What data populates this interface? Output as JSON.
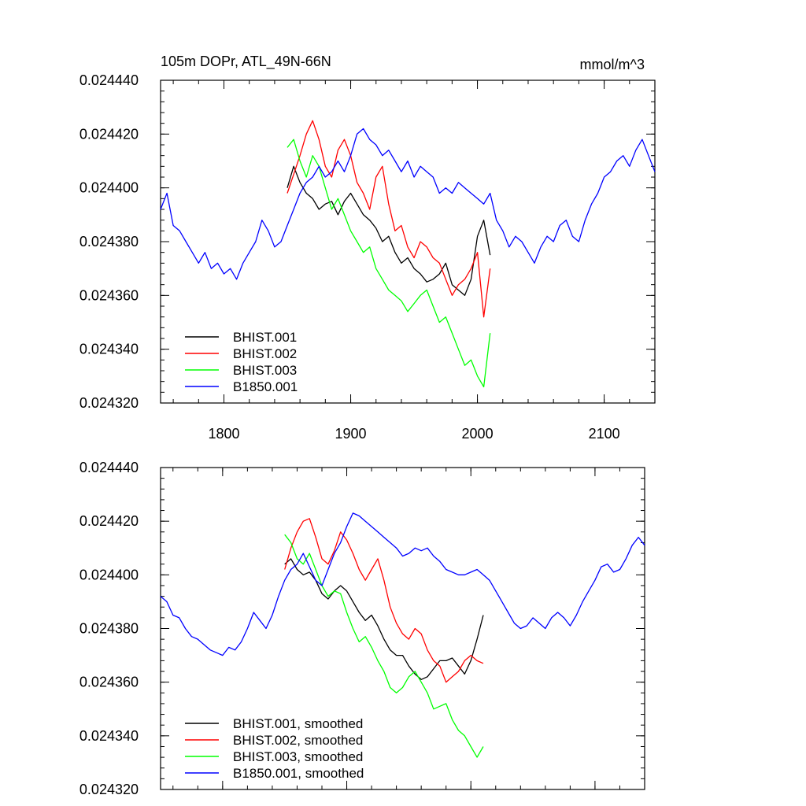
{
  "chart_data": [
    {
      "id": "raw",
      "type": "line",
      "title_left": "105m DOPr, ATL_49N-66N",
      "title_right": "mmol/m^3",
      "xlabel": "",
      "ylabel": "",
      "xlim": [
        1750,
        2140
      ],
      "ylim": [
        0.02432,
        0.02444
      ],
      "xticks": [
        1800,
        1900,
        2000,
        2100
      ],
      "xtick_labels": [
        "1800",
        "1900",
        "2000",
        "2100"
      ],
      "xminor_step": 20,
      "yticks": [
        0.02432,
        0.02434,
        0.02436,
        0.02438,
        0.0244,
        0.02442,
        0.02444
      ],
      "ytick_labels": [
        "0.024320",
        "0.024340",
        "0.024360",
        "0.024380",
        "0.024400",
        "0.024420",
        "0.024440"
      ],
      "yminor_step": 4e-06,
      "legend_position": "bottom-left",
      "series": [
        {
          "name": "BHIST.001",
          "color": "#000000",
          "x_start": 1850,
          "x_step": 5,
          "values": [
            0.0244,
            0.024408,
            0.024402,
            0.024398,
            0.024396,
            0.024392,
            0.024394,
            0.024395,
            0.02439,
            0.024395,
            0.024398,
            0.024394,
            0.02439,
            0.024388,
            0.024385,
            0.02438,
            0.024382,
            0.024376,
            0.024372,
            0.024374,
            0.02437,
            0.024368,
            0.024365,
            0.024366,
            0.024368,
            0.024372,
            0.024364,
            0.024362,
            0.02436,
            0.024366,
            0.024382,
            0.024388,
            0.024375
          ]
        },
        {
          "name": "BHIST.002",
          "color": "#ff0000",
          "x_start": 1850,
          "x_step": 5,
          "values": [
            0.024398,
            0.024405,
            0.024412,
            0.02442,
            0.024425,
            0.024418,
            0.024408,
            0.024404,
            0.024414,
            0.024418,
            0.024412,
            0.024402,
            0.024398,
            0.024392,
            0.024404,
            0.024408,
            0.024394,
            0.024384,
            0.024386,
            0.024378,
            0.024374,
            0.02438,
            0.024378,
            0.024374,
            0.024372,
            0.024366,
            0.02436,
            0.024364,
            0.024366,
            0.02437,
            0.024376,
            0.024352,
            0.02437
          ]
        },
        {
          "name": "BHIST.003",
          "color": "#00ff00",
          "x_start": 1850,
          "x_step": 5,
          "values": [
            0.024415,
            0.024418,
            0.02441,
            0.024404,
            0.024412,
            0.024408,
            0.0244,
            0.024392,
            0.024396,
            0.02439,
            0.024384,
            0.02438,
            0.024376,
            0.024378,
            0.02437,
            0.024366,
            0.024362,
            0.02436,
            0.024358,
            0.024354,
            0.024357,
            0.02436,
            0.024362,
            0.024356,
            0.02435,
            0.024352,
            0.024346,
            0.02434,
            0.024334,
            0.024336,
            0.02433,
            0.024326,
            0.024346
          ]
        },
        {
          "name": "B1850.001",
          "color": "#0000ff",
          "x_start": 1750,
          "x_step": 5,
          "values": [
            0.024392,
            0.024398,
            0.024386,
            0.024384,
            0.02438,
            0.024376,
            0.024372,
            0.024376,
            0.02437,
            0.024372,
            0.024368,
            0.02437,
            0.024366,
            0.024372,
            0.024376,
            0.02438,
            0.024388,
            0.024384,
            0.024378,
            0.02438,
            0.024386,
            0.024392,
            0.024398,
            0.024402,
            0.024404,
            0.024408,
            0.024404,
            0.024406,
            0.02441,
            0.024406,
            0.024412,
            0.02442,
            0.024422,
            0.024418,
            0.024416,
            0.024412,
            0.024414,
            0.02441,
            0.024406,
            0.02441,
            0.024404,
            0.024408,
            0.024406,
            0.024404,
            0.024398,
            0.0244,
            0.024398,
            0.024402,
            0.0244,
            0.024398,
            0.024396,
            0.024394,
            0.024398,
            0.024388,
            0.024384,
            0.024378,
            0.024382,
            0.02438,
            0.024376,
            0.024372,
            0.024378,
            0.024382,
            0.02438,
            0.024386,
            0.024388,
            0.024382,
            0.02438,
            0.024388,
            0.024394,
            0.024398,
            0.024404,
            0.024406,
            0.02441,
            0.024412,
            0.024408,
            0.024414,
            0.024418,
            0.024412,
            0.024406
          ]
        }
      ],
      "legend": [
        "BHIST.001",
        "BHIST.002",
        "BHIST.003",
        "B1850.001"
      ]
    },
    {
      "id": "smoothed",
      "type": "line",
      "title_left": "",
      "title_right": "",
      "xlabel": "",
      "ylabel": "",
      "xlim": [
        1750,
        2140
      ],
      "ylim": [
        0.02432,
        0.02444
      ],
      "xticks": [
        1800,
        1900,
        2000,
        2100
      ],
      "xtick_labels": [],
      "xminor_step": 20,
      "yticks": [
        0.02432,
        0.02434,
        0.02436,
        0.02438,
        0.0244,
        0.02442,
        0.02444
      ],
      "ytick_labels": [
        "0.024320",
        "0.024340",
        "0.024360",
        "0.024380",
        "0.024400",
        "0.024420",
        "0.024440"
      ],
      "yminor_step": 4e-06,
      "legend_position": "bottom-left",
      "series": [
        {
          "name": "BHIST.001, smoothed",
          "color": "#000000",
          "x_start": 1850,
          "x_step": 5,
          "values": [
            0.024404,
            0.024406,
            0.024402,
            0.0244,
            0.024401,
            0.024398,
            0.024393,
            0.024391,
            0.024394,
            0.024396,
            0.024394,
            0.02439,
            0.024386,
            0.024383,
            0.024385,
            0.024381,
            0.024376,
            0.024372,
            0.02437,
            0.02437,
            0.024366,
            0.024363,
            0.024361,
            0.024362,
            0.024365,
            0.024368,
            0.024368,
            0.024369,
            0.024366,
            0.024363,
            0.024368,
            0.024376,
            0.024385
          ]
        },
        {
          "name": "BHIST.002, smoothed",
          "color": "#ff0000",
          "x_start": 1850,
          "x_step": 5,
          "values": [
            0.024402,
            0.02441,
            0.024416,
            0.02442,
            0.024421,
            0.024414,
            0.024406,
            0.024404,
            0.024409,
            0.024416,
            0.024413,
            0.024408,
            0.024402,
            0.024398,
            0.024402,
            0.024406,
            0.024398,
            0.024388,
            0.024382,
            0.024378,
            0.024376,
            0.02438,
            0.024378,
            0.024372,
            0.024368,
            0.024366,
            0.02436,
            0.024362,
            0.024364,
            0.024368,
            0.02437,
            0.024368,
            0.024367
          ]
        },
        {
          "name": "BHIST.003, smoothed",
          "color": "#00ff00",
          "x_start": 1850,
          "x_step": 5,
          "values": [
            0.024415,
            0.024412,
            0.024406,
            0.024404,
            0.024408,
            0.024402,
            0.024396,
            0.024392,
            0.024394,
            0.024393,
            0.024386,
            0.02438,
            0.024375,
            0.024377,
            0.024373,
            0.024368,
            0.024364,
            0.024358,
            0.024356,
            0.024358,
            0.024362,
            0.024364,
            0.02436,
            0.024356,
            0.02435,
            0.024351,
            0.024352,
            0.024346,
            0.024342,
            0.02434,
            0.024336,
            0.024332,
            0.024336
          ]
        },
        {
          "name": "B1850.001, smoothed",
          "color": "#0000ff",
          "x_start": 1750,
          "x_step": 5,
          "values": [
            0.024392,
            0.02439,
            0.024385,
            0.024384,
            0.02438,
            0.024377,
            0.024376,
            0.024374,
            0.024372,
            0.024371,
            0.02437,
            0.024373,
            0.024372,
            0.024375,
            0.02438,
            0.024386,
            0.024383,
            0.02438,
            0.024385,
            0.024392,
            0.024398,
            0.024402,
            0.024404,
            0.024408,
            0.024403,
            0.024398,
            0.024396,
            0.024402,
            0.024408,
            0.024412,
            0.024418,
            0.024423,
            0.024422,
            0.02442,
            0.024418,
            0.024416,
            0.024414,
            0.024412,
            0.02441,
            0.024407,
            0.024408,
            0.02441,
            0.024409,
            0.02441,
            0.024407,
            0.024405,
            0.024402,
            0.024401,
            0.0244,
            0.0244,
            0.024401,
            0.024402,
            0.0244,
            0.024398,
            0.024394,
            0.02439,
            0.024386,
            0.024382,
            0.02438,
            0.024381,
            0.024384,
            0.024382,
            0.02438,
            0.024384,
            0.024386,
            0.024384,
            0.024381,
            0.024385,
            0.02439,
            0.024394,
            0.024398,
            0.024403,
            0.024404,
            0.024401,
            0.024402,
            0.024406,
            0.024411,
            0.024414,
            0.024411
          ]
        }
      ],
      "legend": [
        "BHIST.001, smoothed",
        "BHIST.002, smoothed",
        "BHIST.003, smoothed",
        "B1850.001, smoothed"
      ]
    }
  ]
}
